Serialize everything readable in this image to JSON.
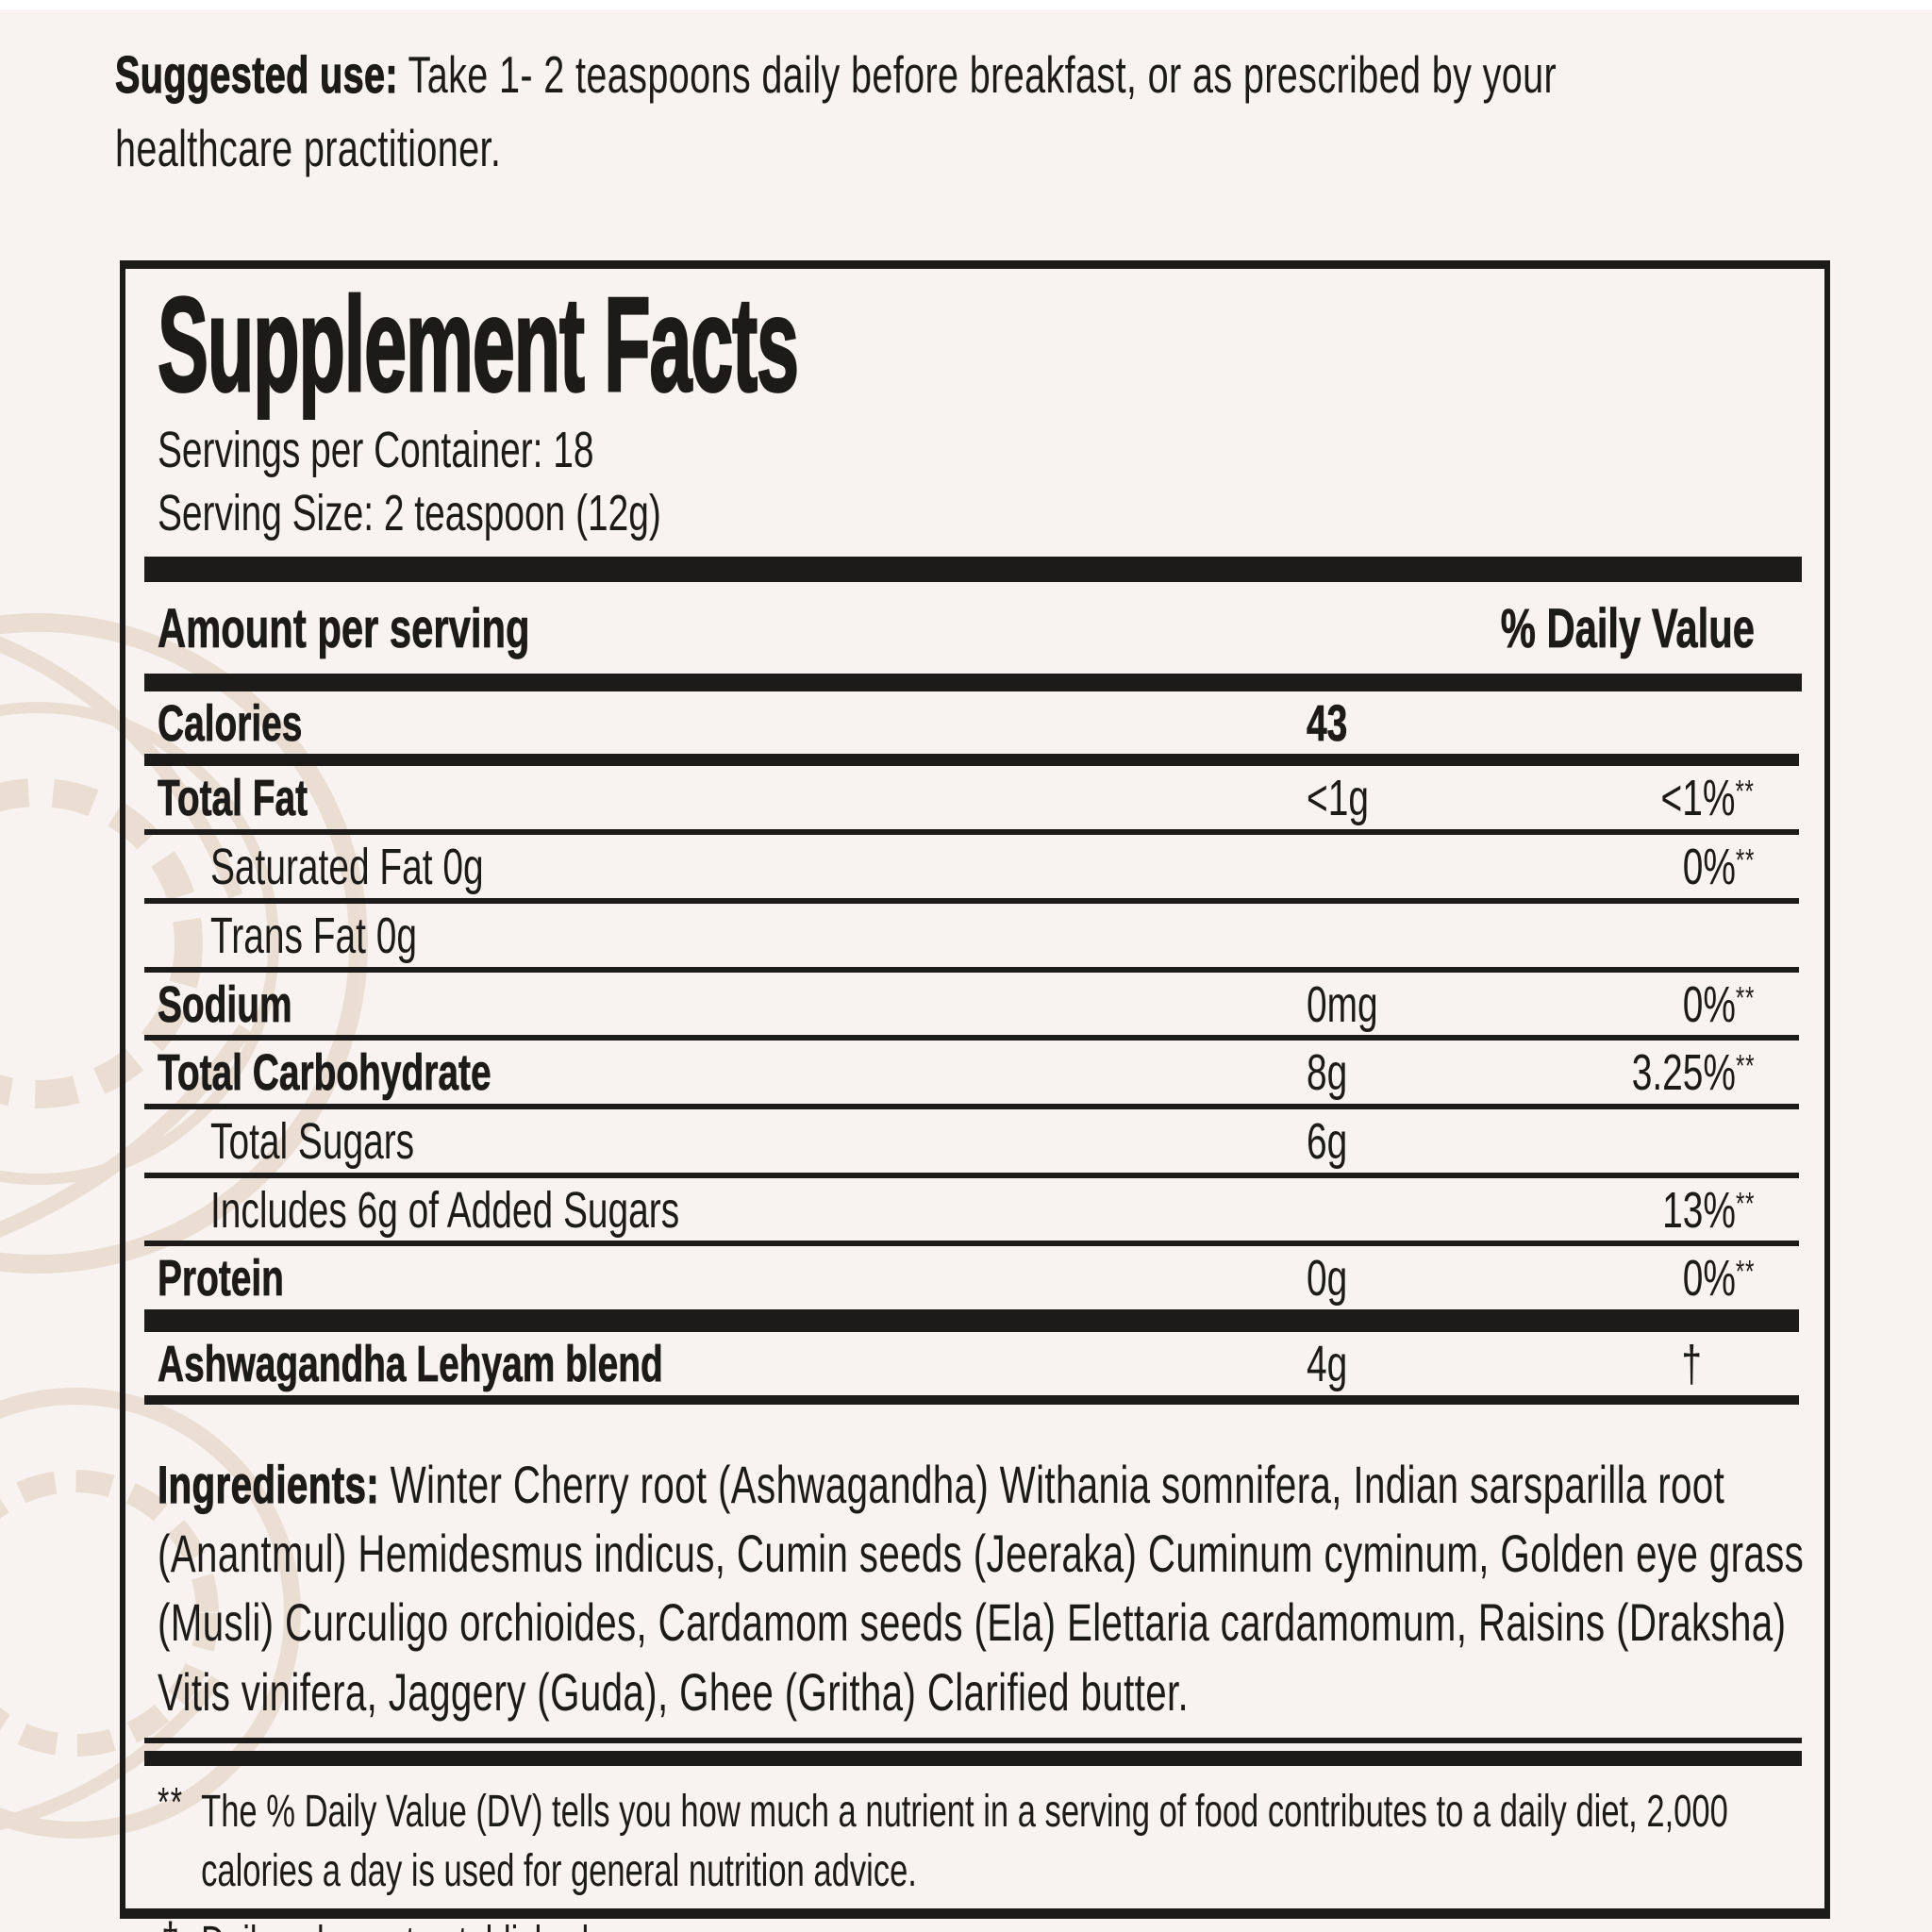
{
  "colors": {
    "paper": "#f8f3f0",
    "ink": "#1d1b19",
    "watermark": "#decbb9"
  },
  "suggested_use": {
    "label": "Suggested use:",
    "text": "Take 1- 2 teaspoons daily before breakfast, or as prescribed by your healthcare practitioner."
  },
  "panel": {
    "title": "Supplement Facts",
    "servings_per_container": "Servings per Container: 18",
    "serving_size": "Serving Size: 2 teaspoon (12g)",
    "columns": {
      "amount": "Amount per serving",
      "daily_value": "% Daily Value"
    },
    "rows": [
      {
        "name": "Calories",
        "amount": "43",
        "dv": "",
        "bold": true,
        "amount_bold": true,
        "indent": false,
        "rule": "medium"
      },
      {
        "name": "Total Fat",
        "amount": "<1g",
        "dv": "<1%**",
        "bold": true,
        "amount_bold": false,
        "indent": false,
        "rule": "thin"
      },
      {
        "name": "Saturated Fat 0g",
        "amount": "",
        "dv": "0%**",
        "bold": false,
        "amount_bold": false,
        "indent": true,
        "rule": "thin"
      },
      {
        "name": "Trans Fat 0g",
        "amount": "",
        "dv": "",
        "bold": false,
        "amount_bold": false,
        "indent": true,
        "rule": "thin"
      },
      {
        "name": "Sodium",
        "amount": "0mg",
        "dv": "0%**",
        "bold": true,
        "amount_bold": false,
        "indent": false,
        "rule": "thin"
      },
      {
        "name": "Total Carbohydrate",
        "amount": "8g",
        "dv": "3.25%**",
        "bold": true,
        "amount_bold": false,
        "indent": false,
        "rule": "thin"
      },
      {
        "name": "Total Sugars",
        "amount": "6g",
        "dv": "",
        "bold": false,
        "amount_bold": false,
        "indent": true,
        "rule": "thin"
      },
      {
        "name": "Includes 6g of Added Sugars",
        "amount": "",
        "dv": "13%**",
        "bold": false,
        "amount_bold": false,
        "indent": true,
        "rule": "thin"
      },
      {
        "name": "Protein",
        "amount": "0g",
        "dv": "0%**",
        "bold": true,
        "amount_bold": false,
        "indent": false,
        "rule": "thick"
      },
      {
        "name": "Ashwagandha Lehyam blend",
        "amount": "4g",
        "dv": "†",
        "bold": true,
        "amount_bold": false,
        "indent": false,
        "rule": "blend"
      }
    ],
    "ingredients": {
      "label": "Ingredients:",
      "text": "Winter Cherry root (Ashwagandha) Withania somnifera, Indian sarsparilla root (Anantmul) Hemidesmus indicus, Cumin seeds (Jeeraka) Cuminum cyminum, Golden eye grass (Musli) Curculigo orchioides, Cardamom seeds (Ela) Elettaria cardamomum, Raisins (Draksha) Vitis vinifera, Jaggery (Guda), Ghee (Gritha) Clarified butter."
    },
    "footnotes": [
      {
        "symbol": "**",
        "text": "The % Daily Value (DV) tells you how much a nutrient in a serving of food contributes to a daily diet, 2,000 calories a day is used for general nutrition advice."
      },
      {
        "symbol": "†",
        "text": "Daily value not established"
      }
    ]
  }
}
